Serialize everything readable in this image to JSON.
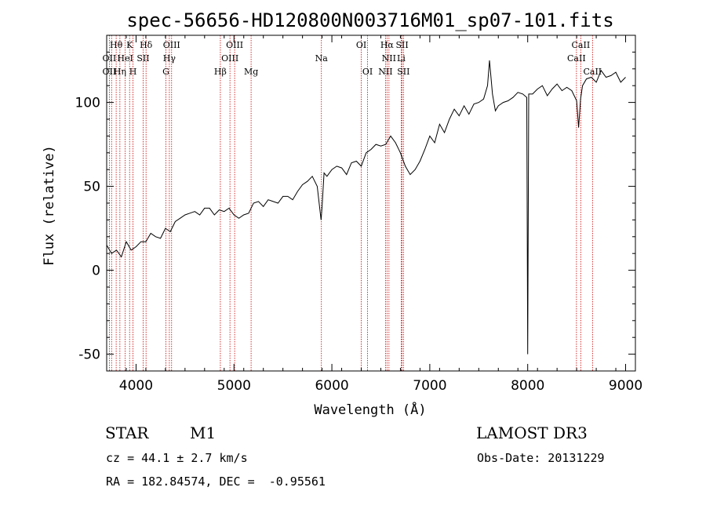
{
  "chart_data": {
    "type": "line",
    "title": "spec-56656-HD120800N003716M01_sp07-101.fits",
    "xlabel": "Wavelength (Å)",
    "ylabel": "Flux (relative)",
    "xlim": [
      3700,
      9100
    ],
    "ylim": [
      -60,
      140
    ],
    "xticks": [
      4000,
      5000,
      6000,
      7000,
      8000,
      9000
    ],
    "yticks": [
      -50,
      0,
      50,
      100
    ],
    "series": [
      {
        "name": "flux",
        "x": [
          3700,
          3750,
          3800,
          3850,
          3900,
          3950,
          4000,
          4050,
          4100,
          4150,
          4200,
          4250,
          4300,
          4350,
          4400,
          4450,
          4500,
          4550,
          4600,
          4650,
          4700,
          4750,
          4800,
          4850,
          4900,
          4950,
          5000,
          5050,
          5100,
          5150,
          5200,
          5250,
          5300,
          5350,
          5400,
          5450,
          5500,
          5550,
          5600,
          5650,
          5700,
          5750,
          5800,
          5850,
          5890,
          5900,
          5920,
          5950,
          6000,
          6050,
          6100,
          6150,
          6200,
          6250,
          6300,
          6350,
          6400,
          6450,
          6500,
          6550,
          6600,
          6650,
          6700,
          6750,
          6800,
          6850,
          6900,
          6950,
          7000,
          7050,
          7100,
          7150,
          7200,
          7250,
          7300,
          7350,
          7400,
          7450,
          7500,
          7550,
          7590,
          7610,
          7640,
          7670,
          7700,
          7750,
          7800,
          7850,
          7900,
          7950,
          7990,
          8000,
          8010,
          8050,
          8100,
          8150,
          8200,
          8250,
          8300,
          8350,
          8400,
          8450,
          8500,
          8520,
          8540,
          8560,
          8600,
          8650,
          8700,
          8750,
          8800,
          8850,
          8900,
          8950,
          9000
        ],
        "y": [
          15,
          10,
          12,
          8,
          17,
          12,
          14,
          17,
          17,
          22,
          20,
          19,
          25,
          23,
          29,
          31,
          33,
          34,
          35,
          33,
          37,
          37,
          33,
          36,
          35,
          37,
          33,
          31,
          33,
          34,
          40,
          41,
          38,
          42,
          41,
          40,
          44,
          44,
          42,
          47,
          51,
          53,
          56,
          50,
          30,
          38,
          58,
          56,
          60,
          62,
          61,
          57,
          64,
          65,
          62,
          70,
          72,
          75,
          74,
          75,
          80,
          76,
          70,
          62,
          57,
          60,
          65,
          72,
          80,
          76,
          87,
          82,
          90,
          96,
          92,
          98,
          93,
          99,
          100,
          102,
          110,
          125,
          105,
          95,
          98,
          100,
          101,
          103,
          106,
          105,
          103,
          -50,
          105,
          105,
          108,
          110,
          104,
          108,
          111,
          107,
          109,
          107,
          101,
          85,
          102,
          110,
          114,
          115,
          112,
          119,
          115,
          116,
          118,
          112,
          115
        ]
      }
    ],
    "annotations": {
      "line_labels": [
        {
          "text": "Hθ",
          "wl": 3797,
          "row": 0
        },
        {
          "text": "K",
          "wl": 3934,
          "row": 0
        },
        {
          "text": "Hδ",
          "wl": 4102,
          "row": 0
        },
        {
          "text": "OIII",
          "wl": 4363,
          "row": 0
        },
        {
          "text": "OIII",
          "wl": 5007,
          "row": 0
        },
        {
          "text": "OI",
          "wl": 6300,
          "row": 0
        },
        {
          "text": "Hα",
          "wl": 6563,
          "row": 0
        },
        {
          "text": "SII",
          "wl": 6717,
          "row": 0
        },
        {
          "text": "CaII",
          "wl": 8542,
          "row": 0
        },
        {
          "text": "OII",
          "wl": 3727,
          "row": 1
        },
        {
          "text": "HeI",
          "wl": 3889,
          "row": 1
        },
        {
          "text": "SII",
          "wl": 4072,
          "row": 1
        },
        {
          "text": "Hγ",
          "wl": 4340,
          "row": 1
        },
        {
          "text": "OIII",
          "wl": 4959,
          "row": 1
        },
        {
          "text": "Na",
          "wl": 5893,
          "row": 1
        },
        {
          "text": "NII",
          "wl": 6583,
          "row": 1
        },
        {
          "text": "Li",
          "wl": 6708,
          "row": 1
        },
        {
          "text": "CaII",
          "wl": 8498,
          "row": 1
        },
        {
          "text": "OII",
          "wl": 3727,
          "row": 2
        },
        {
          "text": "Hη",
          "wl": 3835,
          "row": 2
        },
        {
          "text": "H",
          "wl": 3969,
          "row": 2
        },
        {
          "text": "G",
          "wl": 4305,
          "row": 2
        },
        {
          "text": "Hβ",
          "wl": 4861,
          "row": 2
        },
        {
          "text": "Mg",
          "wl": 5175,
          "row": 2
        },
        {
          "text": "OI",
          "wl": 6364,
          "row": 2
        },
        {
          "text": "NII",
          "wl": 6548,
          "row": 2
        },
        {
          "text": "SII",
          "wl": 6731,
          "row": 2
        },
        {
          "text": "CaII",
          "wl": 8662,
          "row": 2
        }
      ],
      "line_wavelengths": [
        3727,
        3750,
        3797,
        3835,
        3889,
        3934,
        3969,
        4072,
        4102,
        4305,
        4340,
        4363,
        4861,
        4959,
        5007,
        5175,
        5893,
        6300,
        6364,
        6548,
        6563,
        6583,
        6708,
        6717,
        6731,
        8498,
        8542,
        8662
      ],
      "line_color": "#cc0000",
      "spectrum_color": "#000000"
    }
  },
  "info": {
    "object_class": "STAR",
    "subclass": "M1",
    "survey": "LAMOST DR3",
    "redshift": "cz = 44.1 ± 2.7 km/s",
    "obs_date": "Obs-Date: 20131229",
    "coords": "RA = 182.84574, DEC =  -0.95561"
  }
}
